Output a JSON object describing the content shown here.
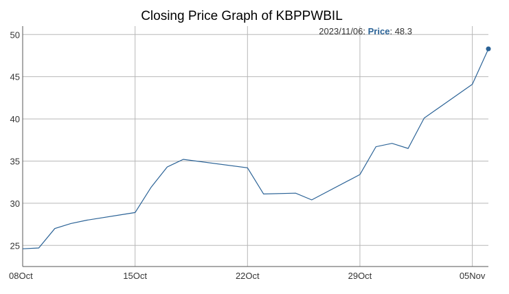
{
  "chart_data": {
    "type": "line",
    "title": "Closing Price Graph of KBPPWBIL",
    "xlabel": "",
    "ylabel": "",
    "x_start": "2023-10-08",
    "x_end": "2023-11-06",
    "ylim": [
      22.5,
      51
    ],
    "y_ticks": [
      25,
      30,
      35,
      40,
      45,
      50
    ],
    "x_ticks": [
      {
        "date": "2023-10-08",
        "label": "08Oct"
      },
      {
        "date": "2023-10-15",
        "label": "15Oct"
      },
      {
        "date": "2023-10-22",
        "label": "22Oct"
      },
      {
        "date": "2023-10-29",
        "label": "29Oct"
      },
      {
        "date": "2023-11-05",
        "label": "05Nov"
      }
    ],
    "grid": true,
    "series": [
      {
        "name": "Price",
        "color": "#2a6296",
        "points": [
          {
            "x": "2023-10-08",
            "y": 24.6
          },
          {
            "x": "2023-10-09",
            "y": 24.7
          },
          {
            "x": "2023-10-10",
            "y": 27.0
          },
          {
            "x": "2023-10-11",
            "y": 27.6
          },
          {
            "x": "2023-10-12",
            "y": 28.0
          },
          {
            "x": "2023-10-15",
            "y": 28.9
          },
          {
            "x": "2023-10-16",
            "y": 31.9
          },
          {
            "x": "2023-10-17",
            "y": 34.3
          },
          {
            "x": "2023-10-18",
            "y": 35.2
          },
          {
            "x": "2023-10-22",
            "y": 34.2
          },
          {
            "x": "2023-10-23",
            "y": 31.1
          },
          {
            "x": "2023-10-25",
            "y": 31.2
          },
          {
            "x": "2023-10-26",
            "y": 30.4
          },
          {
            "x": "2023-10-29",
            "y": 33.4
          },
          {
            "x": "2023-10-30",
            "y": 36.7
          },
          {
            "x": "2023-10-31",
            "y": 37.1
          },
          {
            "x": "2023-11-01",
            "y": 36.5
          },
          {
            "x": "2023-11-02",
            "y": 40.1
          },
          {
            "x": "2023-11-05",
            "y": 44.1
          },
          {
            "x": "2023-11-06",
            "y": 48.3
          }
        ]
      }
    ],
    "tooltip": {
      "date": "2023/11/06",
      "series_name": "Price",
      "value": "48.3"
    }
  }
}
